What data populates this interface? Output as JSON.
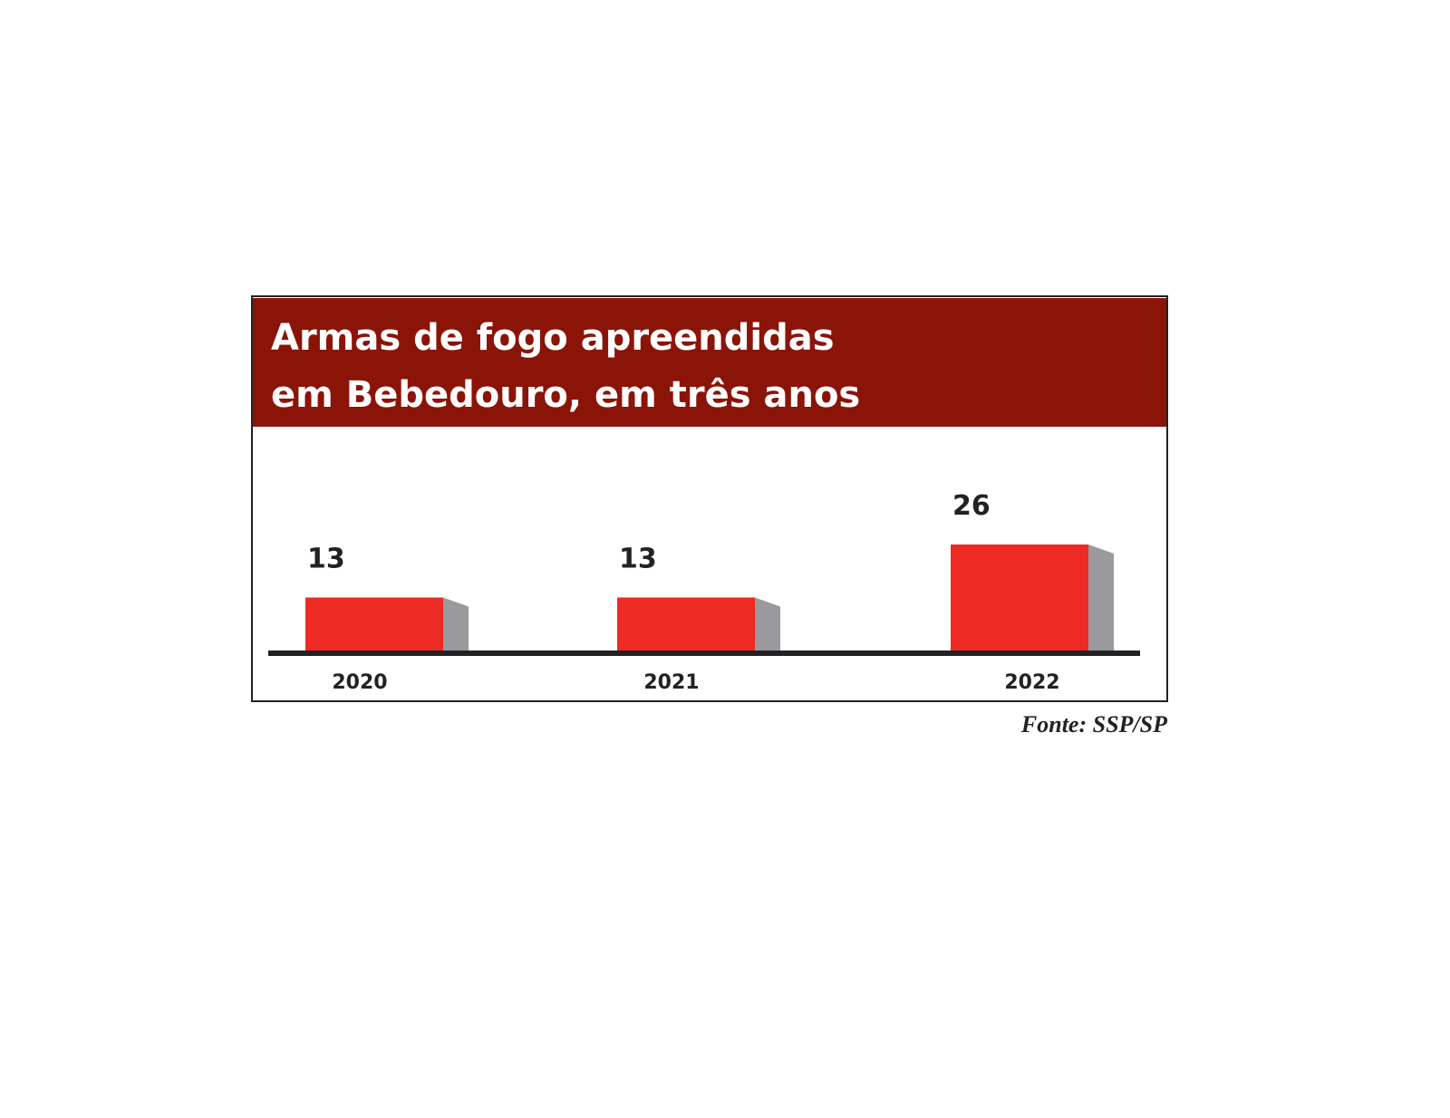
{
  "chart_data": {
    "type": "bar",
    "title": [
      "Armas de fogo apreendidas",
      "em Bebedouro, em três anos"
    ],
    "categories": [
      "2020",
      "2021",
      "2022"
    ],
    "values": [
      13,
      13,
      26
    ],
    "color": "#ee2a24",
    "side_color": "#9a999e",
    "header_color": "#8b1409",
    "source": "Fonte: SSP/SP"
  }
}
